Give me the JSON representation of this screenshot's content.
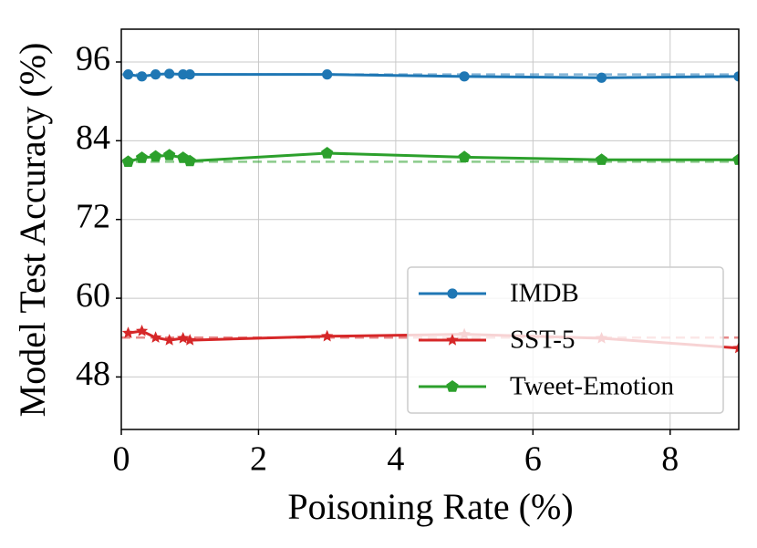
{
  "chart_data": {
    "type": "line",
    "x_label": "Poisoning Rate (%)",
    "y_label": "Model Test Accuracy (%)",
    "x": [
      0.1,
      0.3,
      0.5,
      0.7,
      0.9,
      1,
      3,
      5,
      7,
      9
    ],
    "series": [
      {
        "name": "IMDB",
        "color": "#1f77b4",
        "marker": "circle",
        "baseline": 94.1,
        "values": [
          94.1,
          93.8,
          94.1,
          94.2,
          94.1,
          94.1,
          94.1,
          93.8,
          93.6,
          93.8
        ]
      },
      {
        "name": "SST-5",
        "color": "#d62728",
        "marker": "star",
        "baseline": 54.0,
        "values": [
          54.7,
          55.0,
          54.0,
          53.6,
          53.9,
          53.6,
          54.2,
          54.5,
          53.9,
          52.4
        ]
      },
      {
        "name": "Tweet-Emotion",
        "color": "#2ca02c",
        "marker": "pentagon",
        "baseline": 80.8,
        "values": [
          80.8,
          81.4,
          81.6,
          81.8,
          81.4,
          80.9,
          82.1,
          81.5,
          81.1,
          81.1
        ]
      }
    ],
    "xlim": [
      0,
      9
    ],
    "xticks": [
      0,
      2,
      4,
      6,
      8
    ],
    "ylim": [
      40,
      101
    ],
    "yticks": [
      48,
      60,
      72,
      84,
      96
    ],
    "grid": true,
    "legend": "lower right"
  }
}
